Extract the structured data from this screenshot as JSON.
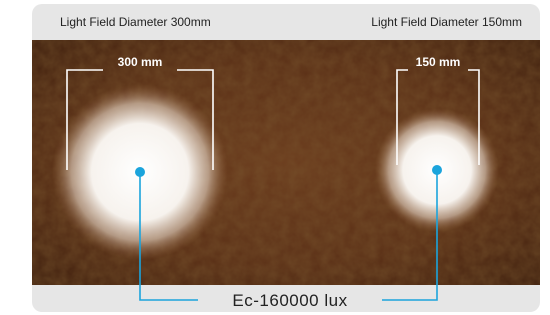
{
  "header": {
    "left_label": "Light Field Diameter 300mm",
    "right_label": "Light Field Diameter 150mm"
  },
  "spots": [
    {
      "label": "300 mm"
    },
    {
      "label": "150 mm"
    }
  ],
  "footer": {
    "label": "Ec-160000 lux"
  }
}
